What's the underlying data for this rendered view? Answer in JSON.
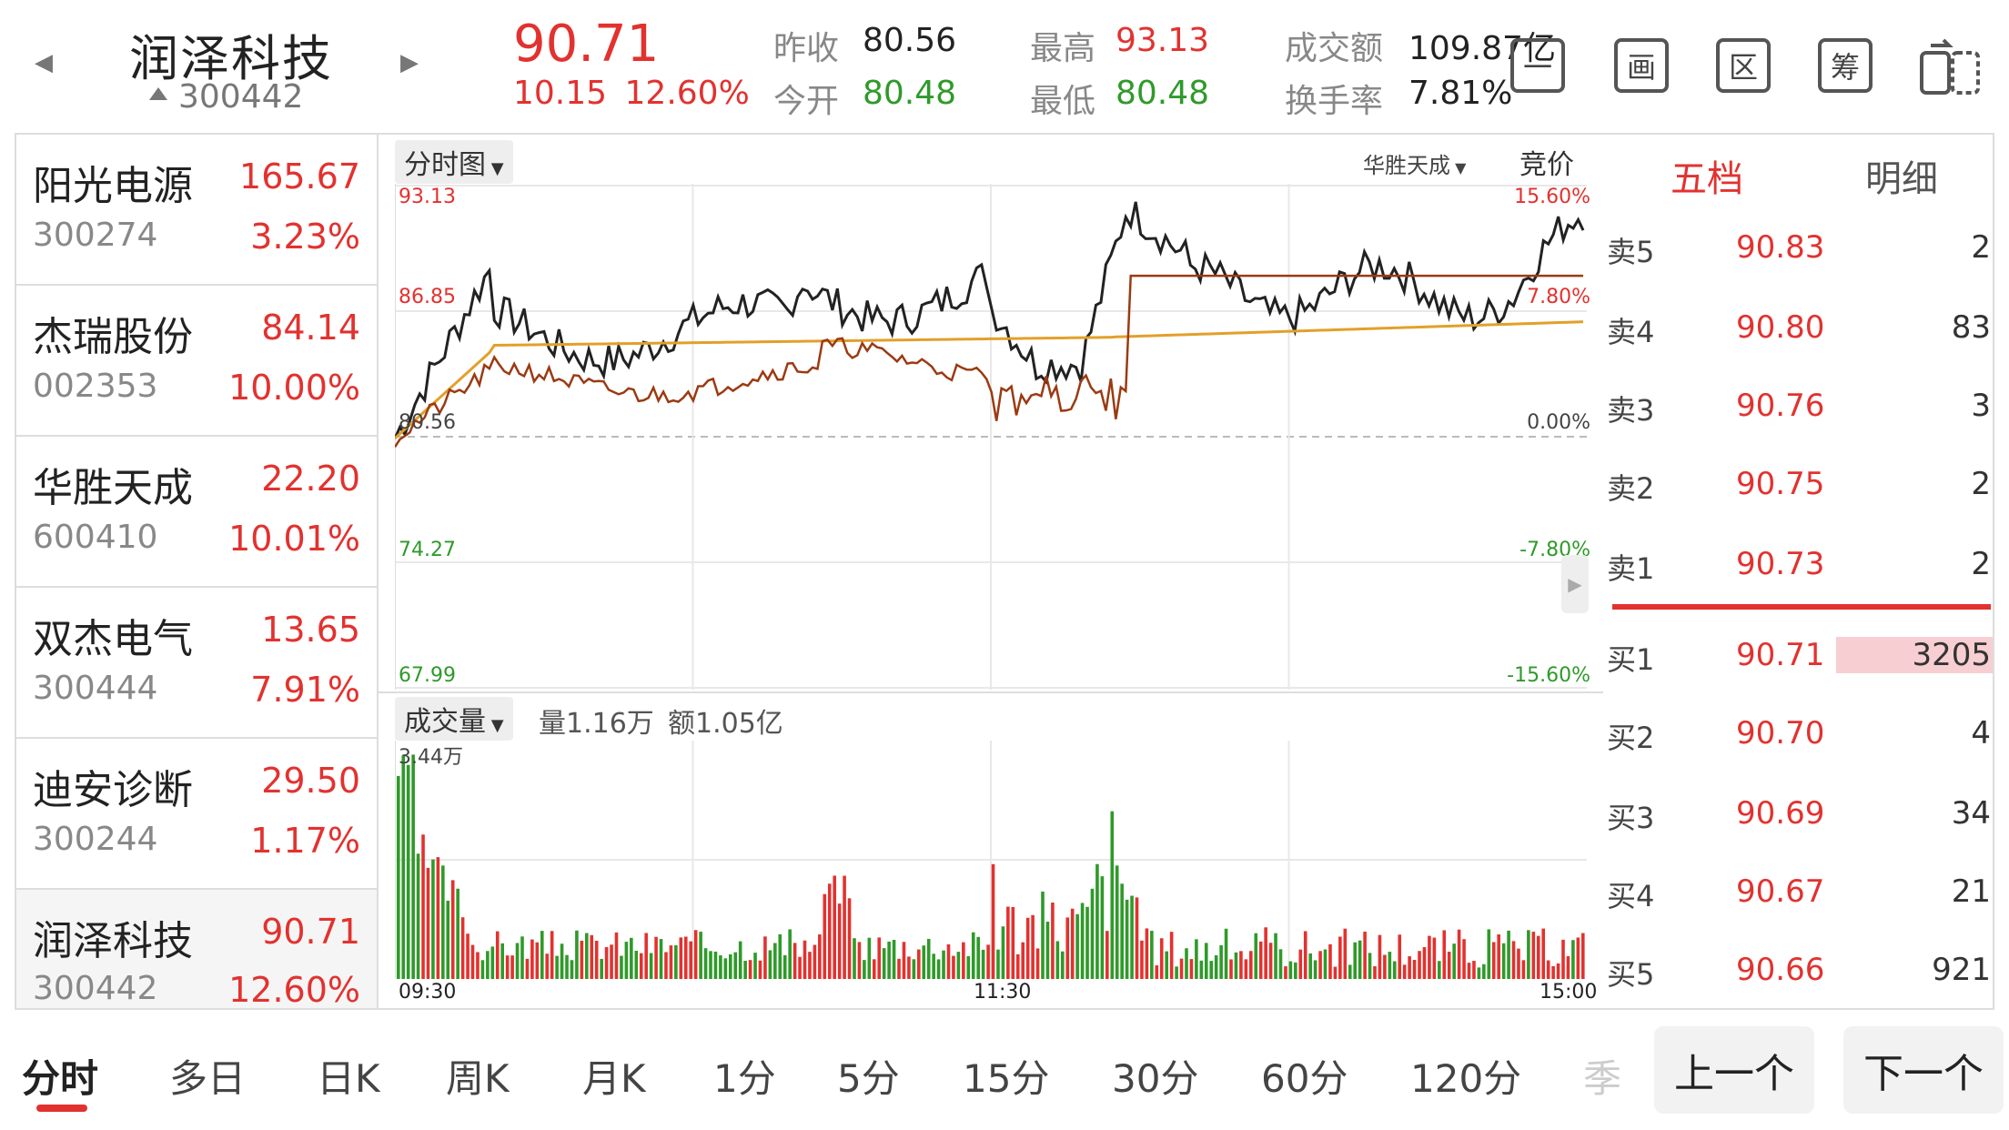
{
  "header": {
    "name": "润泽科技",
    "code": "300442",
    "price": "90.71",
    "change": "10.15",
    "change_pct": "12.60%",
    "prev_close_label": "昨收",
    "prev_close": "80.56",
    "open_label": "今开",
    "open": "80.48",
    "high_label": "最高",
    "high": "93.13",
    "low_label": "最低",
    "low": "80.48",
    "amount_label": "成交额",
    "amount": "109.87亿",
    "turnover_label": "换手率",
    "turnover": "7.81%",
    "icons": [
      {
        "name": "minus-icon",
        "glyph": "一"
      },
      {
        "name": "draw-icon",
        "glyph": "画"
      },
      {
        "name": "range-icon",
        "glyph": "区"
      },
      {
        "name": "chip-icon",
        "glyph": "筹"
      }
    ]
  },
  "watchlist": [
    {
      "name": "阳光电源",
      "code": "300274",
      "price": "165.67",
      "pct": "3.23%"
    },
    {
      "name": "杰瑞股份",
      "code": "002353",
      "price": "84.14",
      "pct": "10.00%"
    },
    {
      "name": "华胜天成",
      "code": "600410",
      "price": "22.20",
      "pct": "10.01%"
    },
    {
      "name": "双杰电气",
      "code": "300444",
      "price": "13.65",
      "pct": "7.91%"
    },
    {
      "name": "迪安诊断",
      "code": "300244",
      "price": "29.50",
      "pct": "1.17%"
    },
    {
      "name": "润泽科技",
      "code": "300442",
      "price": "90.71",
      "pct": "12.60%"
    }
  ],
  "chart": {
    "mode_label": "分时图",
    "compare_label": "华胜天成",
    "auction_label": "竞价",
    "price_ticks": [
      "93.13",
      "86.85",
      "80.56",
      "74.27",
      "67.99"
    ],
    "pct_ticks": [
      "15.60%",
      "7.80%",
      "0.00%",
      "-7.80%",
      "-15.60%"
    ],
    "volume_label": "成交量",
    "volume_info": "量1.16万",
    "amount_info": "额1.05亿",
    "volume_max": "3.44万",
    "time_ticks": [
      "09:30",
      "11:30",
      "15:00"
    ],
    "colors": {
      "price": "#222222",
      "avg": "#e2a02a",
      "compare": "#9b3a12",
      "up": "#e2322f",
      "down": "#2f9a2a"
    }
  },
  "order_book": {
    "tab_active": "五档",
    "tab_other": "明细",
    "asks": [
      {
        "label": "卖5",
        "price": "90.83",
        "vol": "2"
      },
      {
        "label": "卖4",
        "price": "90.80",
        "vol": "83"
      },
      {
        "label": "卖3",
        "price": "90.76",
        "vol": "3"
      },
      {
        "label": "卖2",
        "price": "90.75",
        "vol": "2"
      },
      {
        "label": "卖1",
        "price": "90.73",
        "vol": "2"
      }
    ],
    "bids": [
      {
        "label": "买1",
        "price": "90.71",
        "vol": "3205"
      },
      {
        "label": "买2",
        "price": "90.70",
        "vol": "4"
      },
      {
        "label": "买3",
        "price": "90.69",
        "vol": "34"
      },
      {
        "label": "买4",
        "price": "90.67",
        "vol": "21"
      },
      {
        "label": "买5",
        "price": "90.66",
        "vol": "921"
      }
    ]
  },
  "tabs": [
    "分时",
    "多日",
    "日K",
    "周K",
    "月K",
    "1分",
    "5分",
    "15分",
    "30分",
    "60分",
    "120分",
    "季"
  ],
  "nav": {
    "prev": "上一个",
    "next": "下一个"
  }
}
